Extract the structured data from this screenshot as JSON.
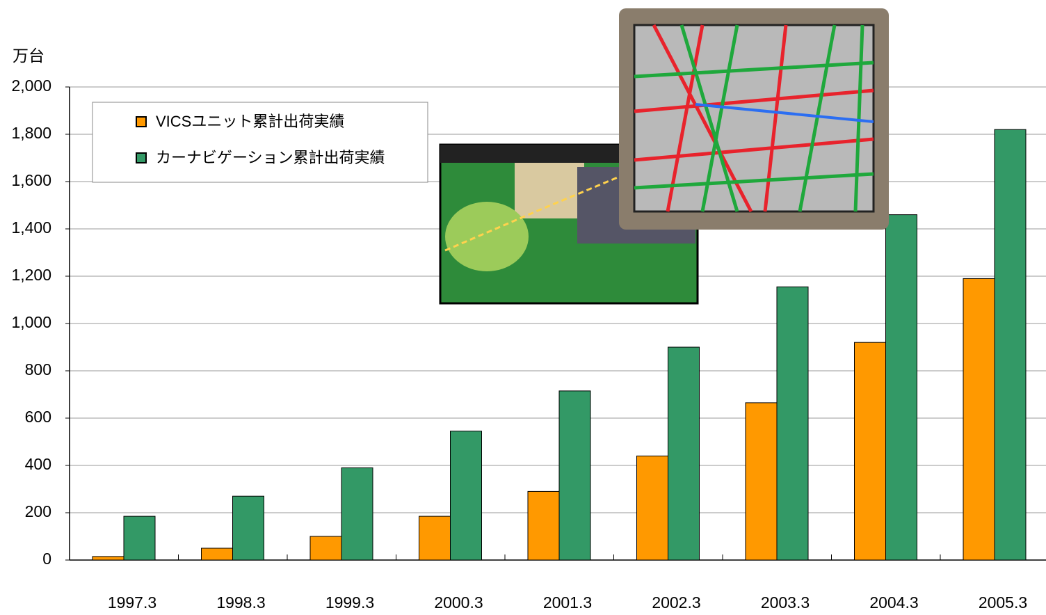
{
  "chart_data": {
    "type": "bar",
    "ylabel": "万台",
    "categories": [
      "1997.3",
      "1998.3",
      "1999.3",
      "2000.3",
      "2001.3",
      "2002.3",
      "2003.3",
      "2004.3",
      "2005.3"
    ],
    "series": [
      {
        "name": "VICSユニット累計出荷実績",
        "color": "#ff9900",
        "values": [
          15,
          50,
          100,
          185,
          290,
          440,
          665,
          920,
          1190
        ]
      },
      {
        "name": "カーナビゲーション累計出荷実績",
        "color": "#339966",
        "values": [
          185,
          270,
          390,
          545,
          715,
          900,
          1155,
          1460,
          1820
        ]
      }
    ],
    "ylim": [
      0,
      2000
    ],
    "yticks": [
      0,
      200,
      400,
      600,
      800,
      {
        "value": 1000,
        "label": "1,000"
      },
      {
        "value": 1200,
        "label": "1,200"
      },
      {
        "value": 1400,
        "label": "1,400"
      },
      {
        "value": 1600,
        "label": "1,600"
      },
      {
        "value": 1800,
        "label": "1,800"
      },
      {
        "value": 2000,
        "label": "2,000"
      }
    ],
    "grid": true,
    "legend": "top-left"
  }
}
